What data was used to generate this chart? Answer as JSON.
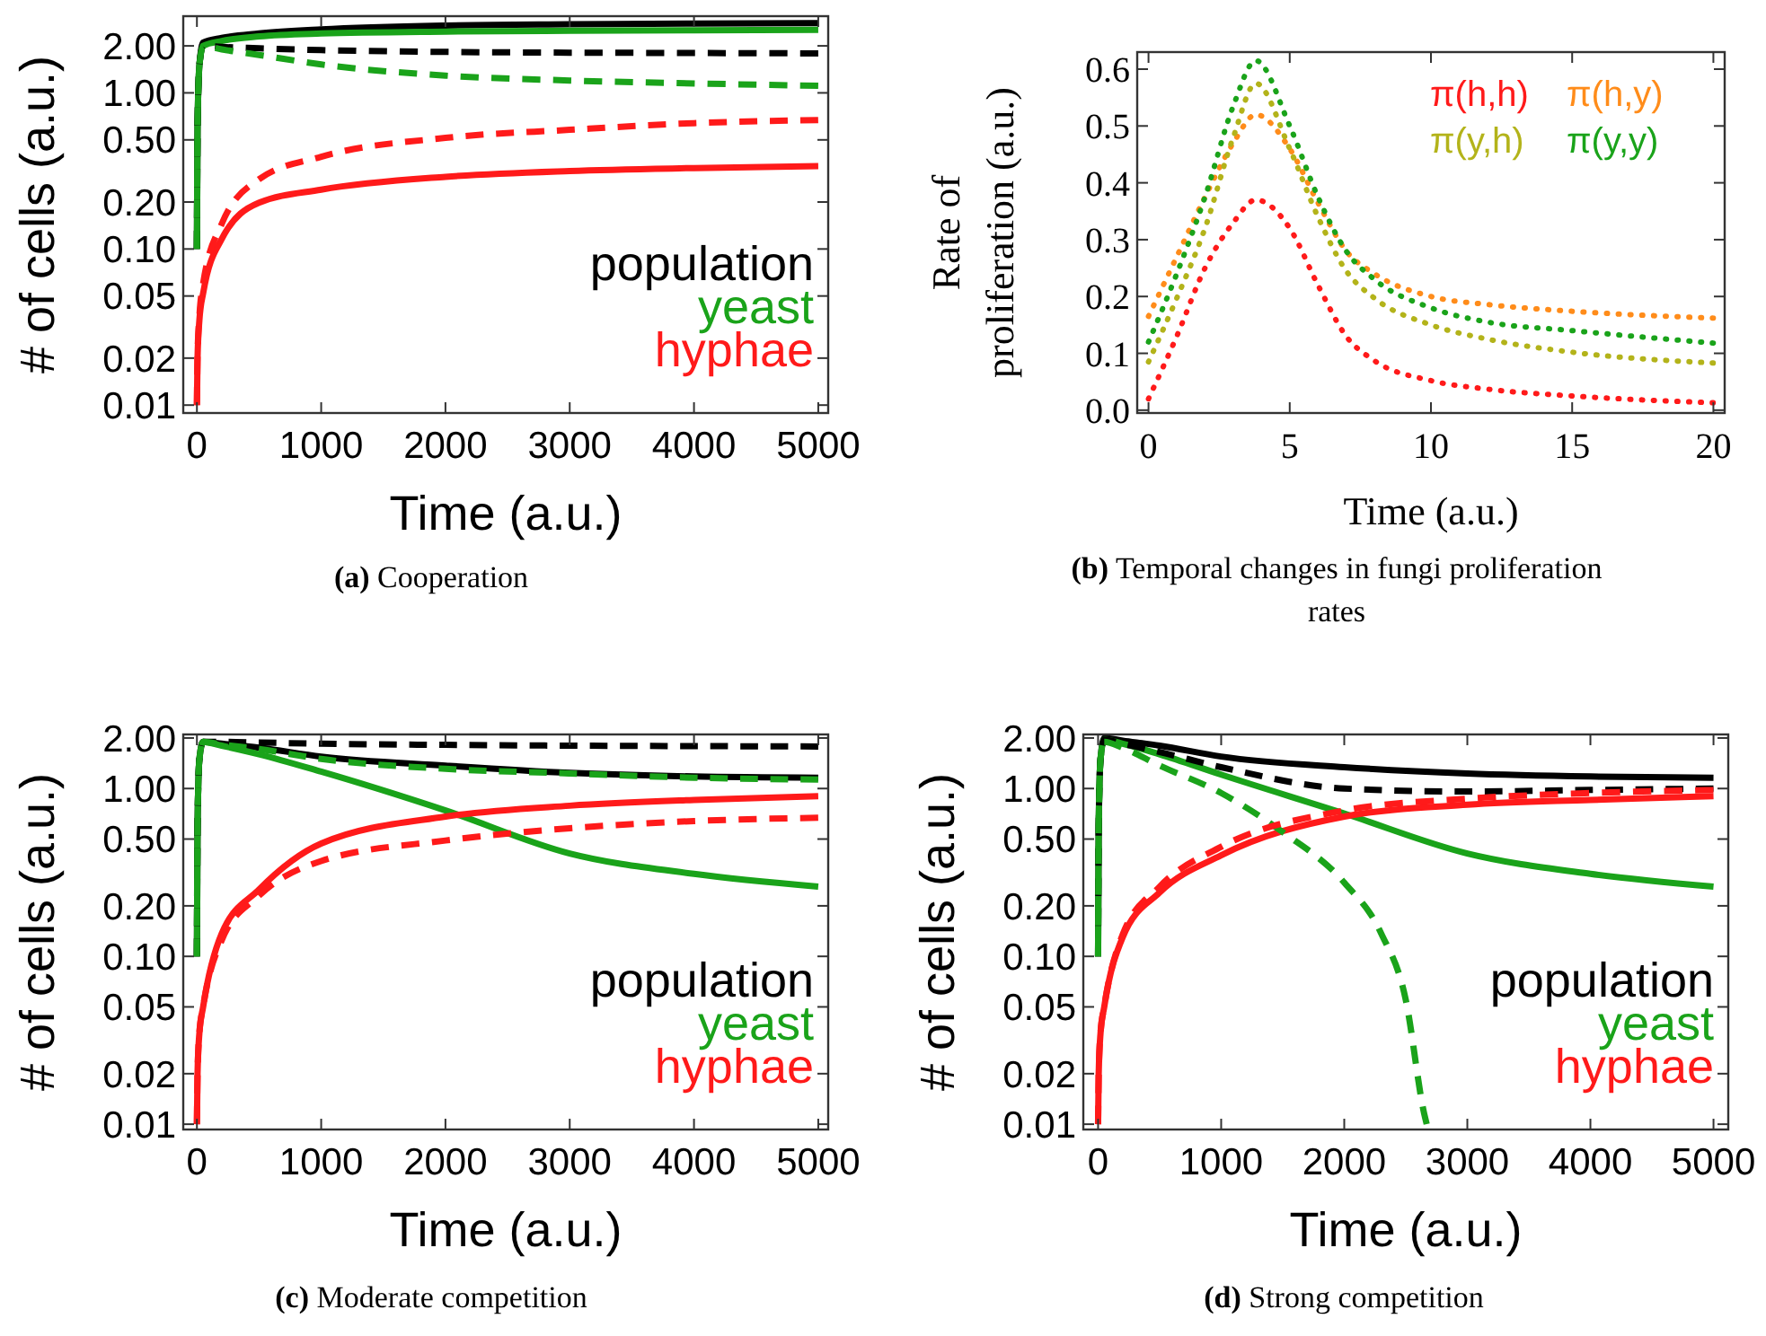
{
  "chart_data": [
    {
      "type": "line",
      "title": "(a) Cooperation",
      "xlabel": "Time (a.u.)",
      "ylabel": "# of cells (a.u.)",
      "log": "y",
      "legend": "bottom right",
      "xlim": [
        -110,
        5080
      ],
      "xticks": [
        0,
        1000,
        2000,
        3000,
        4000,
        5000
      ],
      "ylim": [
        0.0089,
        3.1
      ],
      "yticks": [
        {
          "value": 2,
          "label": "2.00"
        },
        {
          "value": 1,
          "label": "1.00"
        },
        {
          "value": 0.5,
          "label": "0.50"
        },
        {
          "value": 0.2,
          "label": "0.20"
        },
        {
          "value": 0.1,
          "label": "0.10"
        },
        {
          "value": 0.05,
          "label": "0.05"
        },
        {
          "value": 0.02,
          "label": "0.02"
        },
        {
          "value": 0.01,
          "label": "0.01"
        }
      ],
      "x": [
        0,
        5,
        20,
        50,
        200,
        500,
        1000,
        2000,
        3000,
        4000,
        5000
      ],
      "series": [
        {
          "name": "population",
          "color": "#000000",
          "line_style": "solid",
          "values": [
            0.1,
            0.6,
            1.5,
            2.1,
            2.25,
            2.4,
            2.55,
            2.7,
            2.75,
            2.78,
            2.8
          ]
        },
        {
          "name": "yeast",
          "color": "#1aa31a",
          "line_style": "solid",
          "values": [
            0.1,
            0.6,
            1.5,
            2.0,
            2.15,
            2.3,
            2.4,
            2.47,
            2.5,
            2.52,
            2.53
          ]
        },
        {
          "name": "hyphae",
          "color": "#ff1a1a",
          "line_style": "solid",
          "values": [
            0.01,
            0.02,
            0.035,
            0.052,
            0.116,
            0.198,
            0.24,
            0.29,
            0.316,
            0.33,
            0.34
          ]
        },
        {
          "color": "#000000",
          "line_style": "dashed",
          "values": [
            0.1,
            0.6,
            1.5,
            2.0,
            1.97,
            1.93,
            1.88,
            1.83,
            1.81,
            1.8,
            1.79
          ]
        },
        {
          "color": "#1aa31a",
          "line_style": "dashed",
          "values": [
            0.1,
            0.6,
            1.5,
            2.0,
            1.9,
            1.75,
            1.52,
            1.29,
            1.2,
            1.15,
            1.11
          ]
        },
        {
          "color": "#ff1a1a",
          "line_style": "dashed",
          "values": [
            0.01,
            0.021,
            0.037,
            0.06,
            0.145,
            0.28,
            0.39,
            0.515,
            0.58,
            0.64,
            0.67
          ]
        }
      ]
    },
    {
      "type": "line",
      "title": "(b) Temporal changes in fungi proliferation rates",
      "xlabel": "Time (a.u.)",
      "ylabel": "Rate of proliferation (a.u.)",
      "legend": "top right",
      "xlim": [
        -0.4,
        20.4
      ],
      "xticks": [
        0,
        5,
        10,
        15,
        20
      ],
      "ylim": [
        -0.005,
        0.63
      ],
      "yticks": [
        {
          "value": 0,
          "label": "0.0"
        },
        {
          "value": 0.1,
          "label": "0.1"
        },
        {
          "value": 0.2,
          "label": "0.2"
        },
        {
          "value": 0.3,
          "label": "0.3"
        },
        {
          "value": 0.4,
          "label": "0.4"
        },
        {
          "value": 0.5,
          "label": "0.5"
        },
        {
          "value": 0.6,
          "label": "0.6"
        }
      ],
      "x": [
        0,
        1,
        2,
        3,
        3.8,
        5,
        6,
        7,
        8,
        10,
        12,
        15,
        20
      ],
      "series": [
        {
          "name": "π(h,h)",
          "color": "#ff1a1a",
          "line_style": "dotted",
          "values": [
            0.02,
            0.13,
            0.25,
            0.33,
            0.37,
            0.32,
            0.22,
            0.13,
            0.087,
            0.052,
            0.037,
            0.025,
            0.013
          ]
        },
        {
          "name": "π(h,y)",
          "color": "#ff8c1a",
          "line_style": "dotted",
          "values": [
            0.165,
            0.27,
            0.375,
            0.47,
            0.52,
            0.46,
            0.365,
            0.28,
            0.24,
            0.2,
            0.186,
            0.174,
            0.162
          ]
        },
        {
          "name": "π(y,h)",
          "color": "#b3b31a",
          "line_style": "dotted",
          "values": [
            0.085,
            0.197,
            0.32,
            0.48,
            0.575,
            0.46,
            0.34,
            0.245,
            0.197,
            0.15,
            0.125,
            0.102,
            0.083
          ]
        },
        {
          "name": "π(y,y)",
          "color": "#1aa31a",
          "line_style": "dotted",
          "values": [
            0.12,
            0.24,
            0.375,
            0.535,
            0.615,
            0.5,
            0.375,
            0.28,
            0.23,
            0.18,
            0.155,
            0.14,
            0.118
          ]
        }
      ]
    },
    {
      "type": "line",
      "title": "(c) Moderate competition",
      "xlabel": "Time (a.u.)",
      "ylabel": "# of cells (a.u.)",
      "log": "y",
      "legend": "bottom right",
      "xlim": [
        -110,
        5080
      ],
      "xticks": [
        0,
        1000,
        2000,
        3000,
        4000,
        5000
      ],
      "ylim": [
        0.0093,
        2.1
      ],
      "yticks": [
        {
          "value": 2,
          "label": "2.00"
        },
        {
          "value": 1,
          "label": "1.00"
        },
        {
          "value": 0.5,
          "label": "0.50"
        },
        {
          "value": 0.2,
          "label": "0.20"
        },
        {
          "value": 0.1,
          "label": "0.10"
        },
        {
          "value": 0.05,
          "label": "0.05"
        },
        {
          "value": 0.02,
          "label": "0.02"
        },
        {
          "value": 0.01,
          "label": "0.01"
        }
      ],
      "x": [
        0,
        5,
        20,
        50,
        200,
        500,
        1000,
        2000,
        3000,
        4000,
        5000
      ],
      "series": [
        {
          "name": "population",
          "color": "#000000",
          "line_style": "solid",
          "values": [
            0.1,
            0.6,
            1.5,
            1.9,
            1.85,
            1.75,
            1.55,
            1.37,
            1.24,
            1.18,
            1.16
          ]
        },
        {
          "name": "yeast",
          "color": "#1aa31a",
          "line_style": "solid",
          "values": [
            0.1,
            0.6,
            1.5,
            1.9,
            1.8,
            1.6,
            1.26,
            0.74,
            0.41,
            0.31,
            0.26
          ]
        },
        {
          "name": "hyphae",
          "color": "#ff1a1a",
          "line_style": "solid",
          "values": [
            0.01,
            0.02,
            0.035,
            0.05,
            0.137,
            0.25,
            0.47,
            0.68,
            0.79,
            0.855,
            0.9
          ]
        },
        {
          "color": "#000000",
          "line_style": "dashed",
          "values": [
            0.1,
            0.6,
            1.5,
            1.9,
            1.9,
            1.88,
            1.85,
            1.82,
            1.8,
            1.79,
            1.78
          ]
        },
        {
          "color": "#1aa31a",
          "line_style": "dashed",
          "values": [
            0.1,
            0.6,
            1.5,
            1.9,
            1.83,
            1.72,
            1.5,
            1.31,
            1.23,
            1.16,
            1.13
          ]
        },
        {
          "color": "#ff1a1a",
          "line_style": "dashed",
          "values": [
            0.01,
            0.02,
            0.035,
            0.05,
            0.125,
            0.23,
            0.37,
            0.49,
            0.58,
            0.64,
            0.67
          ]
        }
      ]
    },
    {
      "type": "line",
      "title": "(d) Strong competition",
      "xlabel": "Time (a.u.)",
      "ylabel": "# of cells (a.u.)",
      "log": "y",
      "legend": "bottom right",
      "xlim": [
        -120,
        5120
      ],
      "xticks": [
        0,
        1000,
        2000,
        3000,
        4000,
        5000
      ],
      "ylim": [
        0.0093,
        2.1
      ],
      "yticks": [
        {
          "value": 2,
          "label": "2.00"
        },
        {
          "value": 1,
          "label": "1.00"
        },
        {
          "value": 0.5,
          "label": "0.50"
        },
        {
          "value": 0.2,
          "label": "0.20"
        },
        {
          "value": 0.1,
          "label": "0.10"
        },
        {
          "value": 0.05,
          "label": "0.05"
        },
        {
          "value": 0.02,
          "label": "0.02"
        },
        {
          "value": 0.01,
          "label": "0.01"
        }
      ],
      "x": [
        0,
        5,
        20,
        50,
        200,
        500,
        1000,
        2000,
        3000,
        4000,
        5000
      ],
      "series": [
        {
          "name": "population",
          "color": "#000000",
          "line_style": "solid",
          "values": [
            0.1,
            0.6,
            1.5,
            2.0,
            1.93,
            1.8,
            1.55,
            1.34,
            1.23,
            1.18,
            1.16
          ]
        },
        {
          "name": "yeast",
          "color": "#1aa31a",
          "line_style": "solid",
          "values": [
            0.1,
            0.6,
            1.5,
            1.95,
            1.85,
            1.6,
            1.21,
            0.71,
            0.41,
            0.31,
            0.26
          ]
        },
        {
          "name": "hyphae",
          "color": "#ff1a1a",
          "line_style": "solid",
          "values": [
            0.01,
            0.02,
            0.035,
            0.05,
            0.13,
            0.24,
            0.4,
            0.68,
            0.8,
            0.855,
            0.9
          ]
        },
        {
          "color": "#000000",
          "line_style": "dashed",
          "values": [
            0.1,
            0.6,
            1.5,
            1.95,
            1.85,
            1.65,
            1.34,
            1.0,
            0.96,
            0.98,
            1.0
          ]
        },
        {
          "color": "#1aa31a",
          "line_style": "dashed",
          "x": [
            0,
            5,
            20,
            50,
            200,
            500,
            1000,
            1500,
            2000,
            2300,
            2500,
            2650,
            2670
          ],
          "values": [
            0.1,
            0.6,
            1.5,
            1.9,
            1.75,
            1.37,
            0.94,
            0.55,
            0.275,
            0.137,
            0.055,
            0.0115,
            0.01
          ]
        },
        {
          "color": "#ff1a1a",
          "line_style": "dashed",
          "values": [
            0.01,
            0.02,
            0.035,
            0.05,
            0.135,
            0.26,
            0.45,
            0.74,
            0.87,
            0.94,
            0.98
          ]
        }
      ]
    }
  ]
}
